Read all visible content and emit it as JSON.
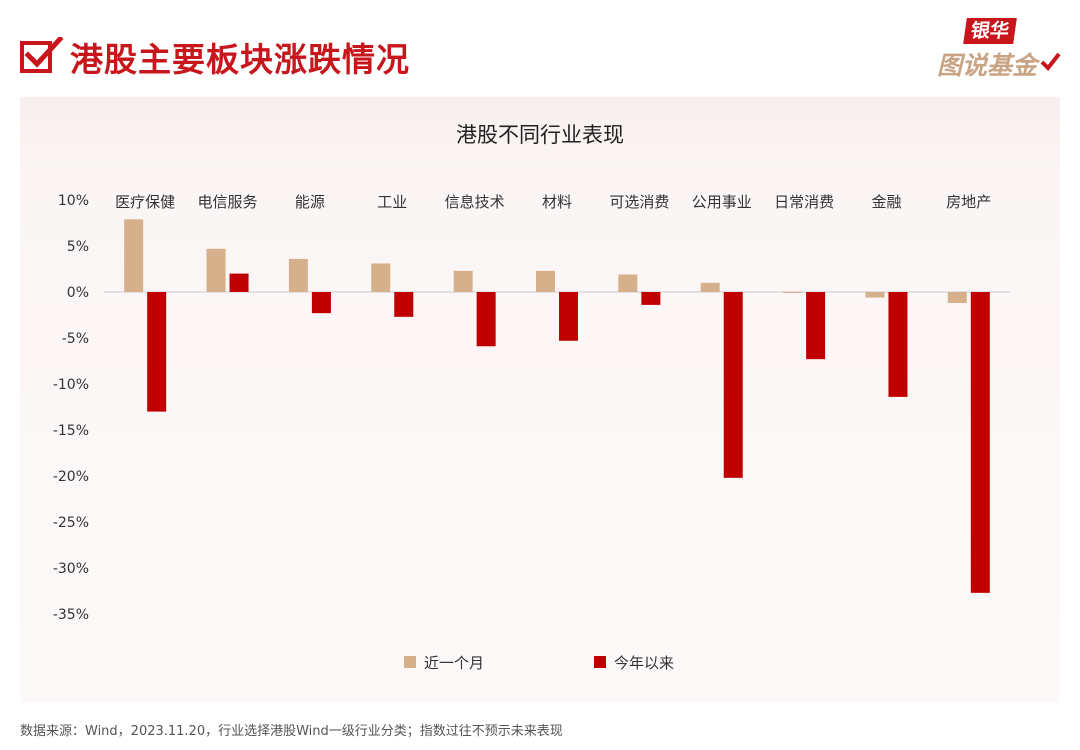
{
  "header": {
    "title": "港股主要板块涨跌情况",
    "brand": {
      "top": "银华",
      "bottom": "图说基金"
    }
  },
  "colors": {
    "accent": "#c8161d",
    "month_series": "#d6b08a",
    "ytd_series": "#c00000"
  },
  "chart_data": {
    "type": "bar",
    "title": "港股不同行业表现",
    "categories": [
      "医疗保健",
      "电信服务",
      "能源",
      "工业",
      "信息技术",
      "材料",
      "可选消费",
      "公用事业",
      "日常消费",
      "金融",
      "房地产"
    ],
    "series": [
      {
        "name": "近一个月",
        "values": [
          7.9,
          4.7,
          3.6,
          3.1,
          2.3,
          2.3,
          1.9,
          1.0,
          -0.1,
          -0.6,
          -1.2
        ]
      },
      {
        "name": "今年以来",
        "values": [
          -13.0,
          2.0,
          -2.3,
          -2.7,
          -5.9,
          -5.3,
          -1.4,
          -20.2,
          -7.3,
          -11.4,
          -32.7
        ]
      }
    ],
    "ylim": [
      -35,
      10
    ],
    "yticks": [
      10,
      5,
      0,
      -5,
      -10,
      -15,
      -20,
      -25,
      -30,
      -35
    ],
    "tick_format": "%",
    "grid": false,
    "legend": "bottom"
  },
  "footer": {
    "source": "数据来源：Wind，2023.11.20，行业选择港股Wind一级行业分类；指数过往不预示未来表现"
  }
}
